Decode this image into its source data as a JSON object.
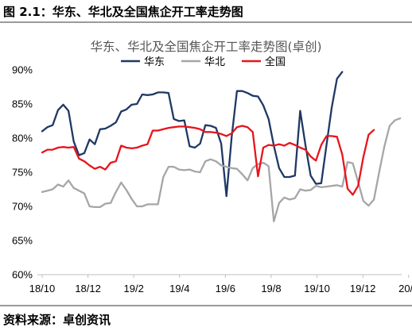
{
  "header": {
    "figure_title": "图 2.1：华东、华北及全国焦企开工率走势图"
  },
  "footer": {
    "source": "资料来源：卓创资讯"
  },
  "chart_data": {
    "type": "line",
    "title": "华东、华北及全国焦企开工率走势图(卓创)",
    "xlabel": "",
    "ylabel": "",
    "ylim": [
      60,
      90
    ],
    "yticks": [
      "60%",
      "65%",
      "70%",
      "75%",
      "80%",
      "85%",
      "90%"
    ],
    "xticks": [
      "18/10",
      "18/12",
      "19/2",
      "19/4",
      "19/6",
      "19/8",
      "19/10",
      "19/12",
      "20/2"
    ],
    "xtick_weeks": [
      0,
      8.7,
      17.4,
      26.1,
      34.8,
      43.5,
      52.2,
      60.9,
      69.6
    ],
    "grid": false,
    "legend_position": "top-center",
    "series": [
      {
        "name": "华东",
        "color": "#1f3864",
        "values": [
          81.0,
          81.6,
          81.9,
          84.1,
          84.9,
          84.0,
          79.5,
          77.5,
          77.8,
          79.8,
          79.1,
          81.3,
          81.4,
          81.8,
          82.3,
          83.9,
          84.2,
          84.9,
          85.0,
          86.4,
          86.3,
          86.4,
          86.7,
          86.7,
          86.6,
          82.8,
          82.5,
          82.6,
          78.8,
          78.6,
          79.2,
          81.9,
          81.8,
          81.5,
          79.2,
          71.5,
          80.2,
          86.9,
          86.9,
          86.6,
          86.2,
          86.1,
          84.8,
          82.8,
          78.9,
          75.6,
          74.3,
          74.3,
          74.5,
          84.0,
          79.0,
          74.5,
          73.3,
          73.4,
          79.0,
          84.5,
          88.7,
          89.7
        ]
      },
      {
        "name": "华北",
        "color": "#a6a6a6",
        "values": [
          72.1,
          72.3,
          72.5,
          73.2,
          72.9,
          73.8,
          72.7,
          72.3,
          71.9,
          70.0,
          69.9,
          69.9,
          70.4,
          70.5,
          72.1,
          73.5,
          72.4,
          71.1,
          70.0,
          70.0,
          70.3,
          70.3,
          70.3,
          74.3,
          75.8,
          75.8,
          75.4,
          75.3,
          75.4,
          75.1,
          75.0,
          76.6,
          76.9,
          76.6,
          76.0,
          75.8,
          75.6,
          75.5,
          74.7,
          73.8,
          75.6,
          76.2,
          76.4,
          75.9,
          67.8,
          70.5,
          71.3,
          71.0,
          71.2,
          72.5,
          72.3,
          72.4,
          73.0,
          72.8,
          72.9,
          73.0,
          73.1,
          72.9,
          76.5,
          76.3,
          73.6,
          70.8,
          70.1,
          71.0,
          75.0,
          78.8,
          81.8,
          82.6,
          82.9
        ]
      },
      {
        "name": "全国",
        "color": "#e8141b",
        "values": [
          77.9,
          78.3,
          78.3,
          78.6,
          78.7,
          78.6,
          78.7,
          77.0,
          76.6,
          76.0,
          75.5,
          75.8,
          75.4,
          76.4,
          76.6,
          78.9,
          78.6,
          78.5,
          78.6,
          78.9,
          79.1,
          81.1,
          81.1,
          81.3,
          81.5,
          81.6,
          81.7,
          81.7,
          81.6,
          81.5,
          81.3,
          80.9,
          80.9,
          80.8,
          80.6,
          80.3,
          80.7,
          81.6,
          81.8,
          81.6,
          80.9,
          74.4,
          78.6,
          79.0,
          78.9,
          79.1,
          78.9,
          79.3,
          79.0,
          78.6,
          78.3,
          77.3,
          76.7,
          79.0,
          80.3,
          80.3,
          80.2,
          77.6,
          72.6,
          71.7,
          73.0,
          77.2,
          80.5,
          81.2
        ]
      }
    ]
  }
}
